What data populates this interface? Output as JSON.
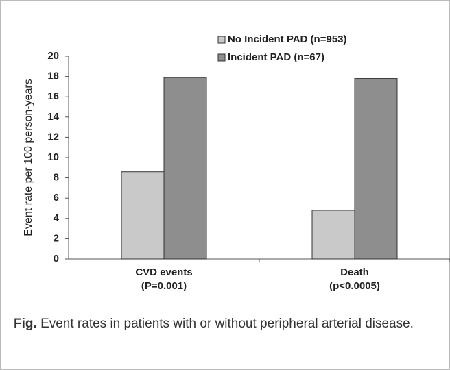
{
  "chart_data": {
    "type": "bar",
    "y_label": "Event rate per 100 person-years",
    "categories": [
      "CVD events",
      "Death"
    ],
    "category_notes": [
      "(P=0.001)",
      "(p<0.0005)"
    ],
    "series": [
      {
        "name": "No Incident PAD (n=953)",
        "color": "#c9c9c9",
        "values": [
          8.6,
          4.8
        ]
      },
      {
        "name": "Incident PAD (n=67)",
        "color": "#8e8e8e",
        "values": [
          17.9,
          17.8
        ]
      }
    ],
    "ylim": [
      0,
      20
    ],
    "yticks": [
      0,
      2,
      4,
      6,
      8,
      10,
      12,
      14,
      16,
      18,
      20
    ],
    "legend": "top"
  },
  "caption": {
    "label": "Fig.",
    "text": "Event rates in patients with or without peripheral arterial disease."
  }
}
